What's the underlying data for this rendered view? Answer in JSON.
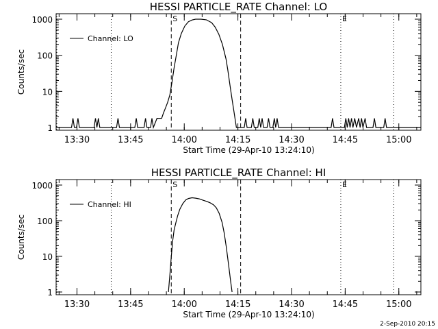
{
  "footer_timestamp": "2-Sep-2010 20:15",
  "chart_data": [
    {
      "type": "line",
      "title": "HESSI PARTICLE_RATE Channel: LO",
      "xlabel": "Start Time (29-Apr-10 13:24:10)",
      "ylabel": "Counts/sec",
      "x_unit": "minutes since 13:24:10",
      "xlim": [
        0,
        102
      ],
      "ylim": [
        1,
        1000
      ],
      "yscale": "log",
      "x_ticks": [
        {
          "label": "13:30",
          "x": 5.83
        },
        {
          "label": "13:45",
          "x": 20.83
        },
        {
          "label": "14:00",
          "x": 35.83
        },
        {
          "label": "14:15",
          "x": 50.83
        },
        {
          "label": "14:30",
          "x": 65.83
        },
        {
          "label": "14:45",
          "x": 80.83
        },
        {
          "label": "15:00",
          "x": 95.83
        }
      ],
      "y_ticks": [
        {
          "label": "1",
          "y": 1
        },
        {
          "label": "10",
          "y": 10
        },
        {
          "label": "100",
          "y": 100
        },
        {
          "label": "1000",
          "y": 1000
        }
      ],
      "legend": {
        "placement": "top-left",
        "entries": [
          "Channel: LO"
        ]
      },
      "markers": [
        {
          "label": "S",
          "x": 32.2,
          "style": "dashed"
        },
        {
          "label": "",
          "x": 51.6,
          "style": "dashed"
        },
        {
          "label": "E",
          "x": 79.6,
          "style": "dotted"
        },
        {
          "label": "",
          "x": 15.4,
          "style": "dotted"
        },
        {
          "label": "",
          "x": 94.4,
          "style": "dotted"
        },
        {
          "label": "",
          "x": 0.2,
          "style": "dotted"
        }
      ],
      "series": [
        {
          "name": "Channel: LO",
          "points": [
            [
              0,
              1
            ],
            [
              4.3,
              1
            ],
            [
              4.7,
              1.8
            ],
            [
              5.1,
              1
            ],
            [
              5.7,
              1
            ],
            [
              6.1,
              1.8
            ],
            [
              6.5,
              1
            ],
            [
              10.6,
              1
            ],
            [
              11.0,
              1.8
            ],
            [
              11.4,
              1
            ],
            [
              11.8,
              1.8
            ],
            [
              12.2,
              1
            ],
            [
              16.9,
              1
            ],
            [
              17.3,
              1.8
            ],
            [
              17.7,
              1
            ],
            [
              22.0,
              1
            ],
            [
              22.4,
              1.8
            ],
            [
              22.8,
              1
            ],
            [
              24.6,
              1
            ],
            [
              25.0,
              1.8
            ],
            [
              25.4,
              1
            ],
            [
              26.4,
              1
            ],
            [
              26.8,
              1.8
            ],
            [
              27.2,
              1
            ],
            [
              28.2,
              1.8
            ],
            [
              29.0,
              1.8
            ],
            [
              29.5,
              1.8
            ],
            [
              30.0,
              2.5
            ],
            [
              30.6,
              3.5
            ],
            [
              31.2,
              5
            ],
            [
              31.8,
              8
            ],
            [
              32.4,
              18
            ],
            [
              33.0,
              45
            ],
            [
              33.6,
              100
            ],
            [
              34.2,
              220
            ],
            [
              35.0,
              400
            ],
            [
              36.0,
              650
            ],
            [
              37.0,
              850
            ],
            [
              38.0,
              950
            ],
            [
              39.0,
              1000
            ],
            [
              40.5,
              1000
            ],
            [
              42.0,
              960
            ],
            [
              43.5,
              800
            ],
            [
              44.5,
              600
            ],
            [
              45.5,
              380
            ],
            [
              46.5,
              200
            ],
            [
              47.5,
              80
            ],
            [
              48.0,
              40
            ],
            [
              48.6,
              15
            ],
            [
              49.2,
              6
            ],
            [
              49.8,
              2.5
            ],
            [
              50.4,
              1
            ],
            [
              52.6,
              1
            ],
            [
              53.0,
              1.8
            ],
            [
              53.4,
              1
            ],
            [
              54.6,
              1
            ],
            [
              55.0,
              1.8
            ],
            [
              55.4,
              1
            ],
            [
              56.4,
              1
            ],
            [
              56.8,
              1.8
            ],
            [
              57.2,
              1
            ],
            [
              57.6,
              1.8
            ],
            [
              58.0,
              1
            ],
            [
              59.0,
              1
            ],
            [
              59.4,
              1.8
            ],
            [
              59.8,
              1
            ],
            [
              60.6,
              1
            ],
            [
              61.0,
              1.8
            ],
            [
              61.4,
              1
            ],
            [
              61.8,
              1.8
            ],
            [
              62.2,
              1
            ],
            [
              76.9,
              1
            ],
            [
              77.3,
              1.8
            ],
            [
              77.7,
              1
            ],
            [
              80.6,
              1
            ],
            [
              81.0,
              1.8
            ],
            [
              81.4,
              1
            ],
            [
              81.8,
              1.8
            ],
            [
              82.2,
              1
            ],
            [
              82.6,
              1.8
            ],
            [
              83.0,
              1
            ],
            [
              83.5,
              1.8
            ],
            [
              84.0,
              1
            ],
            [
              84.6,
              1.8
            ],
            [
              85.0,
              1
            ],
            [
              85.4,
              1.8
            ],
            [
              85.8,
              1
            ],
            [
              86.4,
              1.8
            ],
            [
              86.8,
              1
            ],
            [
              88.6,
              1
            ],
            [
              89.0,
              1.8
            ],
            [
              89.4,
              1
            ],
            [
              91.6,
              1
            ],
            [
              92.0,
              1.8
            ],
            [
              92.4,
              1
            ],
            [
              102,
              1
            ]
          ]
        }
      ]
    },
    {
      "type": "line",
      "title": "HESSI PARTICLE_RATE Channel: HI",
      "xlabel": "Start Time (29-Apr-10 13:24:10)",
      "ylabel": "Counts/sec",
      "x_unit": "minutes since 13:24:10",
      "xlim": [
        0,
        102
      ],
      "ylim": [
        1,
        1000
      ],
      "yscale": "log",
      "x_ticks": [
        {
          "label": "13:30",
          "x": 5.83
        },
        {
          "label": "13:45",
          "x": 20.83
        },
        {
          "label": "14:00",
          "x": 35.83
        },
        {
          "label": "14:15",
          "x": 50.83
        },
        {
          "label": "14:30",
          "x": 65.83
        },
        {
          "label": "14:45",
          "x": 80.83
        },
        {
          "label": "15:00",
          "x": 95.83
        }
      ],
      "y_ticks": [
        {
          "label": "1",
          "y": 1
        },
        {
          "label": "10",
          "y": 10
        },
        {
          "label": "100",
          "y": 100
        },
        {
          "label": "1000",
          "y": 1000
        }
      ],
      "legend": {
        "placement": "top-left",
        "entries": [
          "Channel: HI"
        ]
      },
      "markers": [
        {
          "label": "S",
          "x": 32.2,
          "style": "dashed"
        },
        {
          "label": "",
          "x": 51.6,
          "style": "dashed"
        },
        {
          "label": "E",
          "x": 79.6,
          "style": "dotted"
        },
        {
          "label": "",
          "x": 15.4,
          "style": "dotted"
        },
        {
          "label": "",
          "x": 94.4,
          "style": "dotted"
        },
        {
          "label": "",
          "x": 0.2,
          "style": "dotted"
        }
      ],
      "series": [
        {
          "name": "Channel: HI",
          "points": [
            [
              31.4,
              1
            ],
            [
              31.8,
              3
            ],
            [
              32.2,
              10
            ],
            [
              32.6,
              28
            ],
            [
              33.0,
              55
            ],
            [
              33.5,
              90
            ],
            [
              34.0,
              140
            ],
            [
              34.6,
              210
            ],
            [
              35.4,
              300
            ],
            [
              36.2,
              380
            ],
            [
              37.0,
              420
            ],
            [
              38.0,
              440
            ],
            [
              39.0,
              430
            ],
            [
              40.0,
              410
            ],
            [
              41.0,
              380
            ],
            [
              42.0,
              350
            ],
            [
              43.0,
              320
            ],
            [
              44.0,
              280
            ],
            [
              44.8,
              230
            ],
            [
              45.6,
              160
            ],
            [
              46.4,
              90
            ],
            [
              47.0,
              45
            ],
            [
              47.6,
              18
            ],
            [
              48.2,
              6
            ],
            [
              48.8,
              2
            ],
            [
              49.2,
              1
            ]
          ]
        }
      ]
    }
  ]
}
